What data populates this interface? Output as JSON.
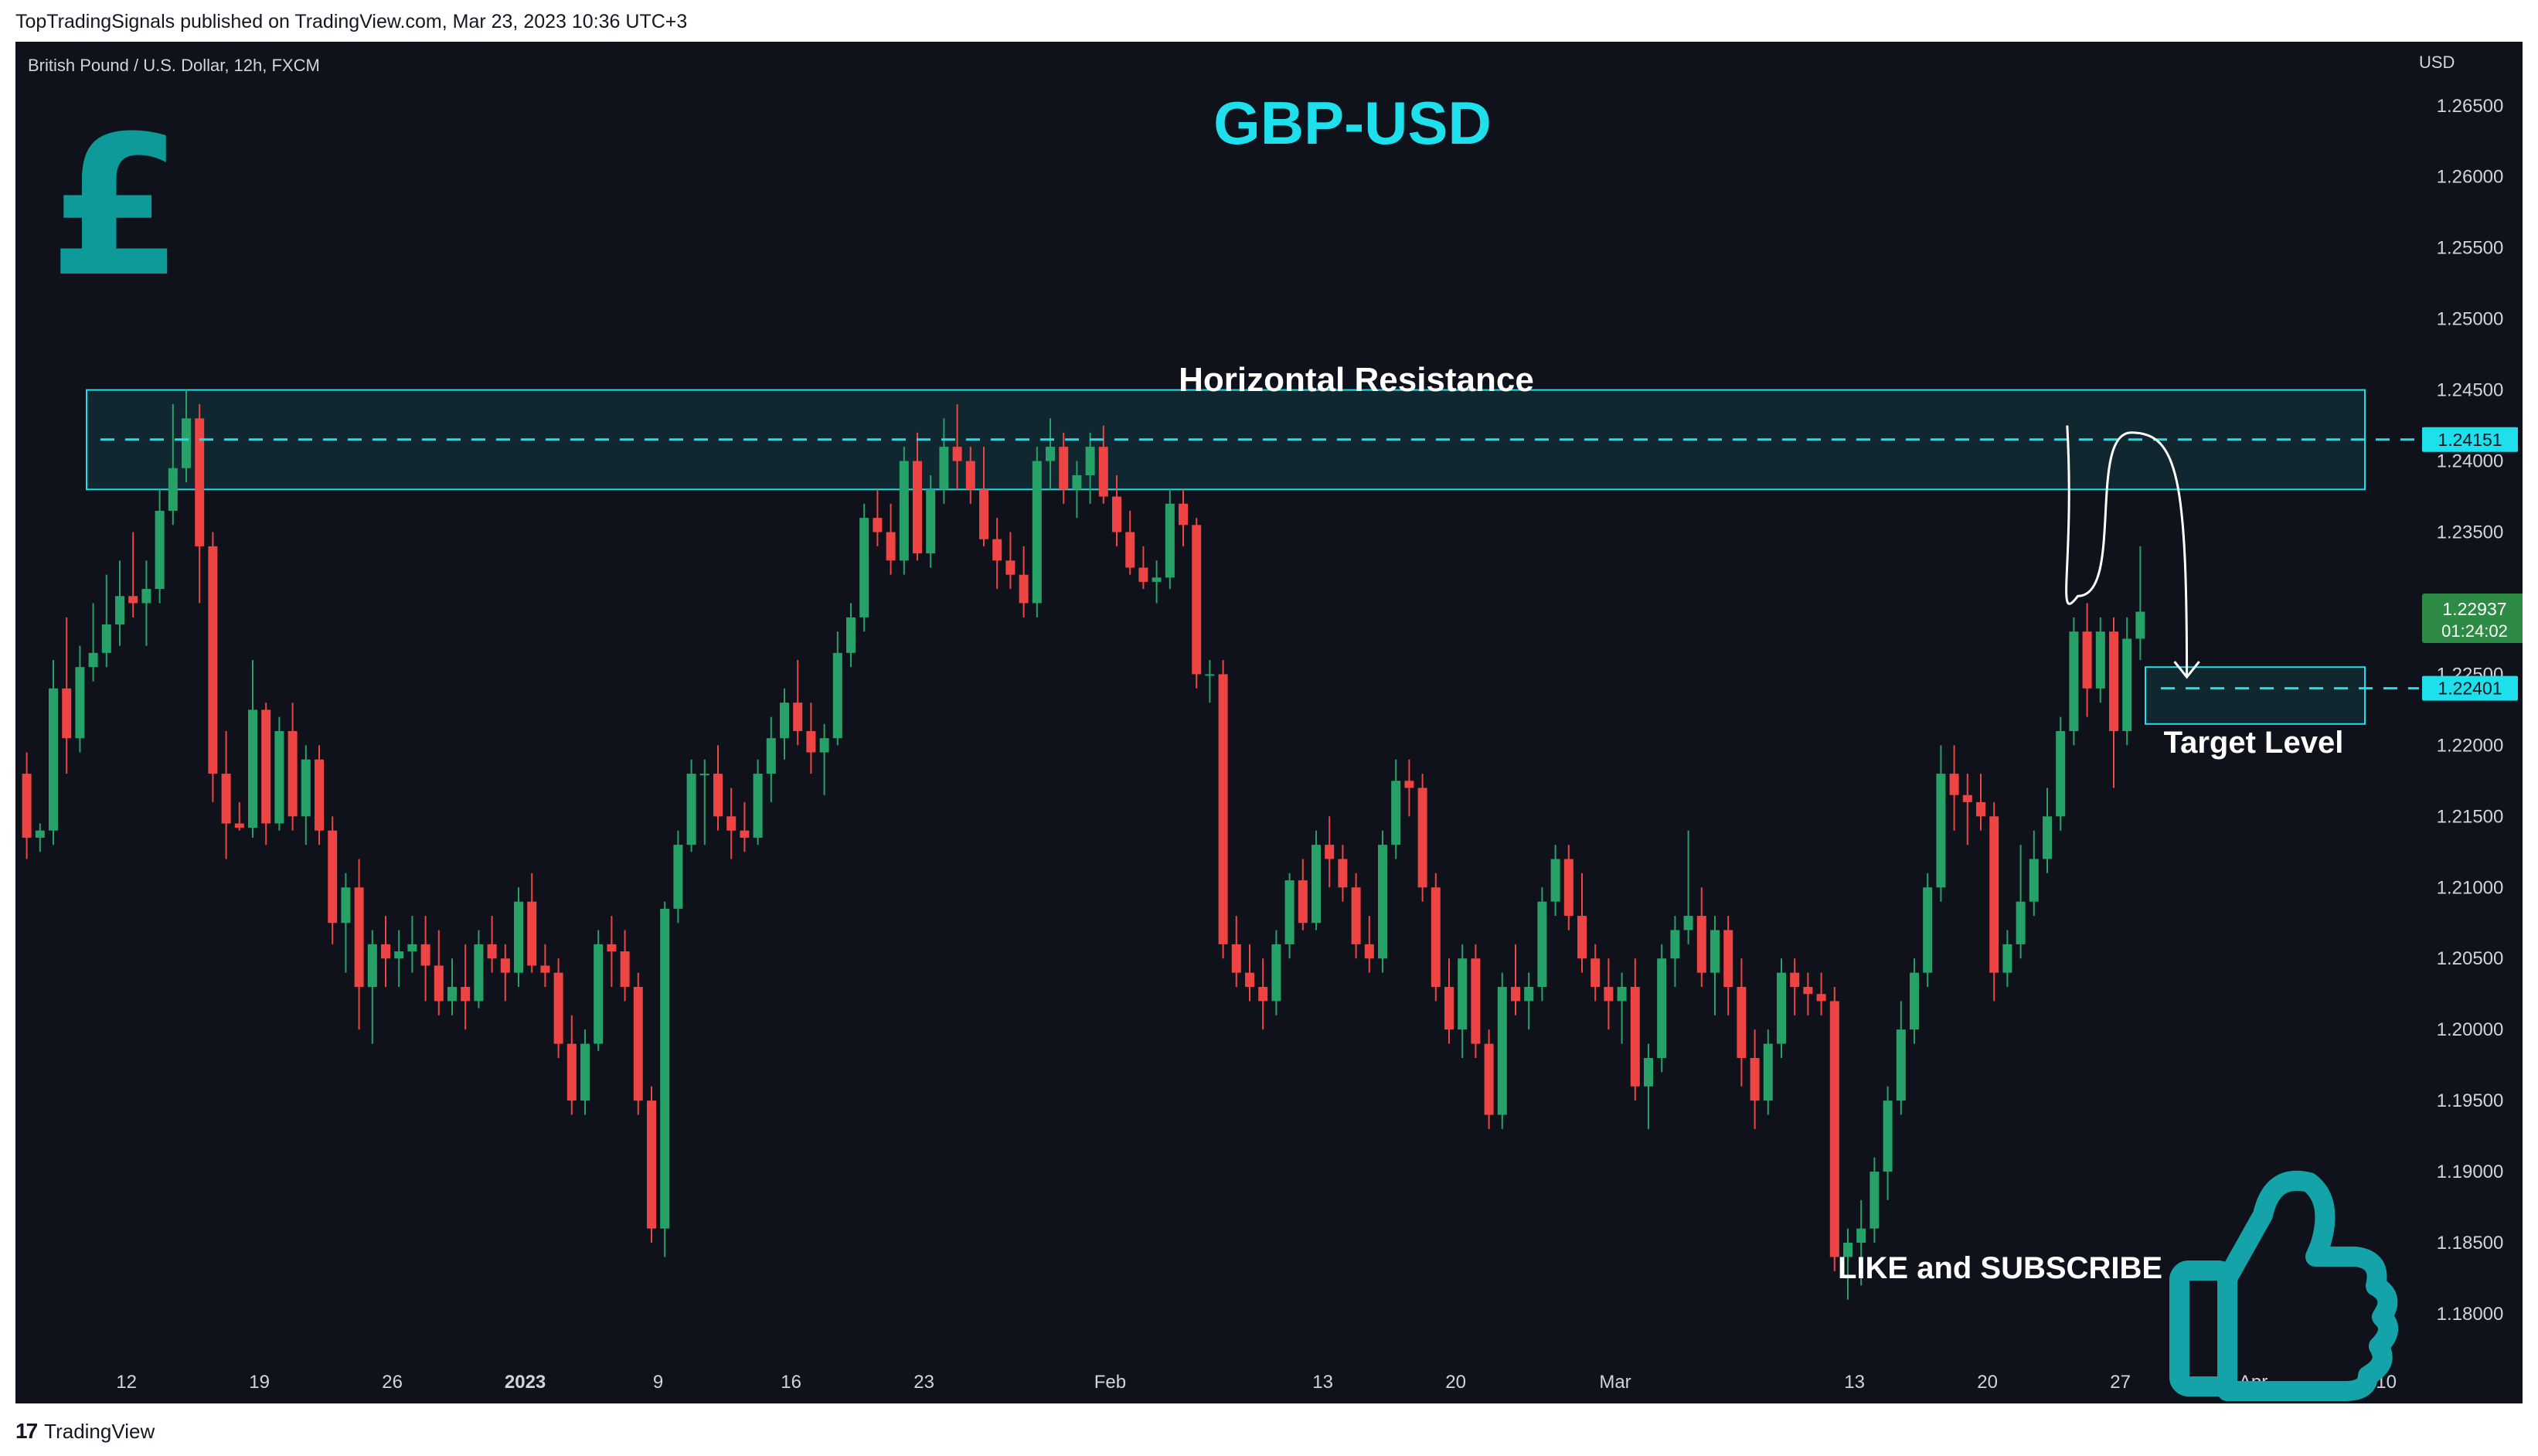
{
  "header": {
    "published_text": "TopTradingSignals published on TradingView.com, Mar 23, 2023 10:36 UTC+3"
  },
  "footer": {
    "logo_mark": "17",
    "brand": "TradingView"
  },
  "colors": {
    "background": "#0f121a",
    "bull": "#26a269",
    "bear": "#ef4444",
    "accent": "#1ee0ec",
    "pound_icon": "#0f9a9a",
    "thumb_icon": "#13a3a8",
    "last_price_bg": "#2e8b45"
  },
  "icons": [
    "pound-sign-icon",
    "thumbs-up-icon",
    "tradingview-logo-icon"
  ],
  "chart_data": {
    "type": "candlestick",
    "instrument_label": "British Pound / U.S. Dollar, 12h, FXCM",
    "title": "GBP-USD",
    "currency_label": "USD",
    "ylim": [
      1.1775,
      1.2695
    ],
    "y_ticks": [
      "1.26500",
      "1.26000",
      "1.25500",
      "1.25000",
      "1.24500",
      "1.24000",
      "1.23500",
      "1.23000",
      "1.22500",
      "1.22000",
      "1.21500",
      "1.21000",
      "1.20500",
      "1.20000",
      "1.19500",
      "1.19000",
      "1.18500",
      "1.18000"
    ],
    "x_ticks": [
      {
        "label": "12",
        "bar": 7.5
      },
      {
        "label": "19",
        "bar": 17.5
      },
      {
        "label": "26",
        "bar": 27.5
      },
      {
        "label": "2023",
        "bar": 37.5,
        "bold": true
      },
      {
        "label": "9",
        "bar": 47.5
      },
      {
        "label": "16",
        "bar": 57.5
      },
      {
        "label": "23",
        "bar": 67.5
      },
      {
        "label": "Feb",
        "bar": 81.5
      },
      {
        "label": "13",
        "bar": 97.5
      },
      {
        "label": "20",
        "bar": 107.5
      },
      {
        "label": "Mar",
        "bar": 119.5
      },
      {
        "label": "13",
        "bar": 137.5
      },
      {
        "label": "20",
        "bar": 147.5
      },
      {
        "label": "27",
        "bar": 157.5
      },
      {
        "label": "Apr",
        "bar": 167.5
      },
      {
        "label": "10",
        "bar": 177.5
      }
    ],
    "candles": [
      [
        1.218,
        1.2195,
        1.212,
        1.2135
      ],
      [
        1.2135,
        1.2145,
        1.2125,
        1.214
      ],
      [
        1.214,
        1.226,
        1.213,
        1.224
      ],
      [
        1.224,
        1.229,
        1.218,
        1.2205
      ],
      [
        1.2205,
        1.227,
        1.2195,
        1.2255
      ],
      [
        1.2255,
        1.23,
        1.2245,
        1.2265
      ],
      [
        1.2265,
        1.232,
        1.2255,
        1.2285
      ],
      [
        1.2285,
        1.233,
        1.227,
        1.2305
      ],
      [
        1.2305,
        1.235,
        1.229,
        1.23
      ],
      [
        1.23,
        1.233,
        1.227,
        1.231
      ],
      [
        1.231,
        1.238,
        1.23,
        1.2365
      ],
      [
        1.2365,
        1.244,
        1.2355,
        1.2395
      ],
      [
        1.2395,
        1.245,
        1.2385,
        1.243
      ],
      [
        1.243,
        1.244,
        1.23,
        1.234
      ],
      [
        1.234,
        1.235,
        1.216,
        1.218
      ],
      [
        1.218,
        1.221,
        1.212,
        1.2145
      ],
      [
        1.2145,
        1.216,
        1.214,
        1.2142
      ],
      [
        1.2142,
        1.226,
        1.2135,
        1.2225
      ],
      [
        1.2225,
        1.223,
        1.213,
        1.2145
      ],
      [
        1.2145,
        1.222,
        1.214,
        1.221
      ],
      [
        1.221,
        1.223,
        1.214,
        1.215
      ],
      [
        1.215,
        1.22,
        1.213,
        1.219
      ],
      [
        1.219,
        1.22,
        1.213,
        1.214
      ],
      [
        1.214,
        1.215,
        1.206,
        1.2075
      ],
      [
        1.2075,
        1.211,
        1.204,
        1.21
      ],
      [
        1.21,
        1.212,
        1.2,
        1.203
      ],
      [
        1.203,
        1.207,
        1.199,
        1.206
      ],
      [
        1.206,
        1.208,
        1.203,
        1.205
      ],
      [
        1.205,
        1.207,
        1.203,
        1.2055
      ],
      [
        1.2055,
        1.208,
        1.204,
        1.206
      ],
      [
        1.206,
        1.208,
        1.202,
        1.2045
      ],
      [
        1.2045,
        1.207,
        1.201,
        1.202
      ],
      [
        1.202,
        1.205,
        1.201,
        1.203
      ],
      [
        1.203,
        1.206,
        1.2,
        1.202
      ],
      [
        1.202,
        1.207,
        1.2015,
        1.206
      ],
      [
        1.206,
        1.208,
        1.204,
        1.205
      ],
      [
        1.205,
        1.206,
        1.202,
        1.204
      ],
      [
        1.204,
        1.21,
        1.203,
        1.209
      ],
      [
        1.209,
        1.211,
        1.204,
        1.2045
      ],
      [
        1.2045,
        1.206,
        1.203,
        1.204
      ],
      [
        1.204,
        1.205,
        1.198,
        1.199
      ],
      [
        1.199,
        1.201,
        1.194,
        1.195
      ],
      [
        1.195,
        1.2,
        1.194,
        1.199
      ],
      [
        1.199,
        1.207,
        1.1985,
        1.206
      ],
      [
        1.206,
        1.208,
        1.203,
        1.2055
      ],
      [
        1.2055,
        1.207,
        1.202,
        1.203
      ],
      [
        1.203,
        1.204,
        1.194,
        1.195
      ],
      [
        1.195,
        1.196,
        1.185,
        1.186
      ],
      [
        1.186,
        1.209,
        1.184,
        1.2085
      ],
      [
        1.2085,
        1.214,
        1.2075,
        1.213
      ],
      [
        1.213,
        1.219,
        1.2125,
        1.218
      ],
      [
        1.218,
        1.219,
        1.213,
        1.218
      ],
      [
        1.218,
        1.22,
        1.214,
        1.215
      ],
      [
        1.215,
        1.217,
        1.212,
        1.214
      ],
      [
        1.214,
        1.216,
        1.2125,
        1.2135
      ],
      [
        1.2135,
        1.219,
        1.213,
        1.218
      ],
      [
        1.218,
        1.222,
        1.216,
        1.2205
      ],
      [
        1.2205,
        1.224,
        1.219,
        1.223
      ],
      [
        1.223,
        1.226,
        1.22,
        1.221
      ],
      [
        1.221,
        1.223,
        1.218,
        1.2195
      ],
      [
        1.2195,
        1.2215,
        1.2165,
        1.2205
      ],
      [
        1.2205,
        1.228,
        1.22,
        1.2265
      ],
      [
        1.2265,
        1.23,
        1.2255,
        1.229
      ],
      [
        1.229,
        1.237,
        1.228,
        1.236
      ],
      [
        1.236,
        1.238,
        1.234,
        1.235
      ],
      [
        1.235,
        1.237,
        1.232,
        1.233
      ],
      [
        1.233,
        1.241,
        1.232,
        1.24
      ],
      [
        1.24,
        1.242,
        1.233,
        1.2335
      ],
      [
        1.2335,
        1.239,
        1.2325,
        1.238
      ],
      [
        1.238,
        1.243,
        1.237,
        1.241
      ],
      [
        1.241,
        1.244,
        1.238,
        1.24
      ],
      [
        1.24,
        1.241,
        1.237,
        1.238
      ],
      [
        1.238,
        1.241,
        1.234,
        1.2345
      ],
      [
        1.2345,
        1.236,
        1.231,
        1.233
      ],
      [
        1.233,
        1.235,
        1.231,
        1.232
      ],
      [
        1.232,
        1.234,
        1.229,
        1.23
      ],
      [
        1.23,
        1.241,
        1.229,
        1.24
      ],
      [
        1.24,
        1.243,
        1.238,
        1.241
      ],
      [
        1.241,
        1.242,
        1.237,
        1.238
      ],
      [
        1.238,
        1.24,
        1.236,
        1.239
      ],
      [
        1.239,
        1.242,
        1.237,
        1.241
      ],
      [
        1.241,
        1.2425,
        1.237,
        1.2375
      ],
      [
        1.2375,
        1.239,
        1.234,
        1.235
      ],
      [
        1.235,
        1.2365,
        1.232,
        1.2325
      ],
      [
        1.2325,
        1.234,
        1.231,
        1.2315
      ],
      [
        1.2315,
        1.233,
        1.23,
        1.2318
      ],
      [
        1.2318,
        1.238,
        1.231,
        1.237
      ],
      [
        1.237,
        1.238,
        1.234,
        1.2355
      ],
      [
        1.2355,
        1.236,
        1.224,
        1.225
      ],
      [
        1.225,
        1.226,
        1.223,
        1.225
      ],
      [
        1.225,
        1.226,
        1.205,
        1.206
      ],
      [
        1.206,
        1.208,
        1.203,
        1.204
      ],
      [
        1.204,
        1.206,
        1.202,
        1.203
      ],
      [
        1.203,
        1.205,
        1.2,
        1.202
      ],
      [
        1.202,
        1.207,
        1.201,
        1.206
      ],
      [
        1.206,
        1.211,
        1.205,
        1.2105
      ],
      [
        1.2105,
        1.212,
        1.207,
        1.2075
      ],
      [
        1.2075,
        1.214,
        1.207,
        1.213
      ],
      [
        1.213,
        1.215,
        1.21,
        1.212
      ],
      [
        1.212,
        1.213,
        1.209,
        1.21
      ],
      [
        1.21,
        1.211,
        1.205,
        1.206
      ],
      [
        1.206,
        1.208,
        1.204,
        1.205
      ],
      [
        1.205,
        1.214,
        1.204,
        1.213
      ],
      [
        1.213,
        1.219,
        1.212,
        1.2175
      ],
      [
        1.2175,
        1.219,
        1.215,
        1.217
      ],
      [
        1.217,
        1.218,
        1.209,
        1.21
      ],
      [
        1.21,
        1.211,
        1.202,
        1.203
      ],
      [
        1.203,
        1.205,
        1.199,
        1.2
      ],
      [
        1.2,
        1.206,
        1.198,
        1.205
      ],
      [
        1.205,
        1.206,
        1.198,
        1.199
      ],
      [
        1.199,
        1.2,
        1.193,
        1.194
      ],
      [
        1.194,
        1.204,
        1.193,
        1.203
      ],
      [
        1.203,
        1.206,
        1.201,
        1.202
      ],
      [
        1.202,
        1.204,
        1.2,
        1.203
      ],
      [
        1.203,
        1.21,
        1.202,
        1.209
      ],
      [
        1.209,
        1.213,
        1.208,
        1.212
      ],
      [
        1.212,
        1.213,
        1.207,
        1.208
      ],
      [
        1.208,
        1.211,
        1.204,
        1.205
      ],
      [
        1.205,
        1.206,
        1.202,
        1.203
      ],
      [
        1.203,
        1.205,
        1.2,
        1.202
      ],
      [
        1.202,
        1.204,
        1.199,
        1.203
      ],
      [
        1.203,
        1.205,
        1.195,
        1.196
      ],
      [
        1.196,
        1.199,
        1.193,
        1.198
      ],
      [
        1.198,
        1.206,
        1.197,
        1.205
      ],
      [
        1.205,
        1.208,
        1.203,
        1.207
      ],
      [
        1.207,
        1.214,
        1.206,
        1.208
      ],
      [
        1.208,
        1.21,
        1.203,
        1.204
      ],
      [
        1.204,
        1.208,
        1.201,
        1.207
      ],
      [
        1.207,
        1.208,
        1.201,
        1.203
      ],
      [
        1.203,
        1.205,
        1.196,
        1.198
      ],
      [
        1.198,
        1.2,
        1.193,
        1.195
      ],
      [
        1.195,
        1.2,
        1.194,
        1.199
      ],
      [
        1.199,
        1.205,
        1.198,
        1.204
      ],
      [
        1.204,
        1.205,
        1.201,
        1.203
      ],
      [
        1.203,
        1.204,
        1.201,
        1.2025
      ],
      [
        1.2025,
        1.204,
        1.201,
        1.202
      ],
      [
        1.202,
        1.203,
        1.183,
        1.184
      ],
      [
        1.184,
        1.186,
        1.181,
        1.185
      ],
      [
        1.185,
        1.188,
        1.182,
        1.186
      ],
      [
        1.186,
        1.191,
        1.185,
        1.19
      ],
      [
        1.19,
        1.196,
        1.188,
        1.195
      ],
      [
        1.195,
        1.202,
        1.194,
        1.2
      ],
      [
        1.2,
        1.205,
        1.199,
        1.204
      ],
      [
        1.204,
        1.211,
        1.203,
        1.21
      ],
      [
        1.21,
        1.22,
        1.209,
        1.218
      ],
      [
        1.218,
        1.22,
        1.214,
        1.2165
      ],
      [
        1.2165,
        1.218,
        1.213,
        1.216
      ],
      [
        1.216,
        1.218,
        1.214,
        1.215
      ],
      [
        1.215,
        1.216,
        1.202,
        1.204
      ],
      [
        1.204,
        1.207,
        1.203,
        1.206
      ],
      [
        1.206,
        1.213,
        1.205,
        1.209
      ],
      [
        1.209,
        1.214,
        1.208,
        1.212
      ],
      [
        1.212,
        1.217,
        1.211,
        1.215
      ],
      [
        1.215,
        1.222,
        1.214,
        1.221
      ],
      [
        1.221,
        1.229,
        1.22,
        1.228
      ],
      [
        1.228,
        1.23,
        1.222,
        1.224
      ],
      [
        1.224,
        1.229,
        1.223,
        1.228
      ],
      [
        1.228,
        1.229,
        1.217,
        1.221
      ],
      [
        1.221,
        1.229,
        1.22,
        1.2275
      ],
      [
        1.2275,
        1.234,
        1.226,
        1.2294
      ]
    ],
    "resistance_zone": {
      "label": "Horizontal Resistance",
      "low": 1.238,
      "high": 1.245,
      "level": 1.24151,
      "level_label": "1.24151"
    },
    "target_zone": {
      "label": "Target Level",
      "low": 1.2215,
      "high": 1.2255,
      "level": 1.22401,
      "level_label": "1.22401"
    },
    "last_price": {
      "value_label": "1.22937",
      "countdown": "01:24:02",
      "value": 1.22937
    },
    "projection_path": [
      [
        153.5,
        1.2425
      ],
      [
        154.3,
        1.2305
      ],
      [
        158.5,
        1.234
      ],
      [
        159.5,
        1.242
      ],
      [
        162.5,
        1.2248
      ]
    ],
    "callout": "LIKE and SUBSCRIBE"
  }
}
